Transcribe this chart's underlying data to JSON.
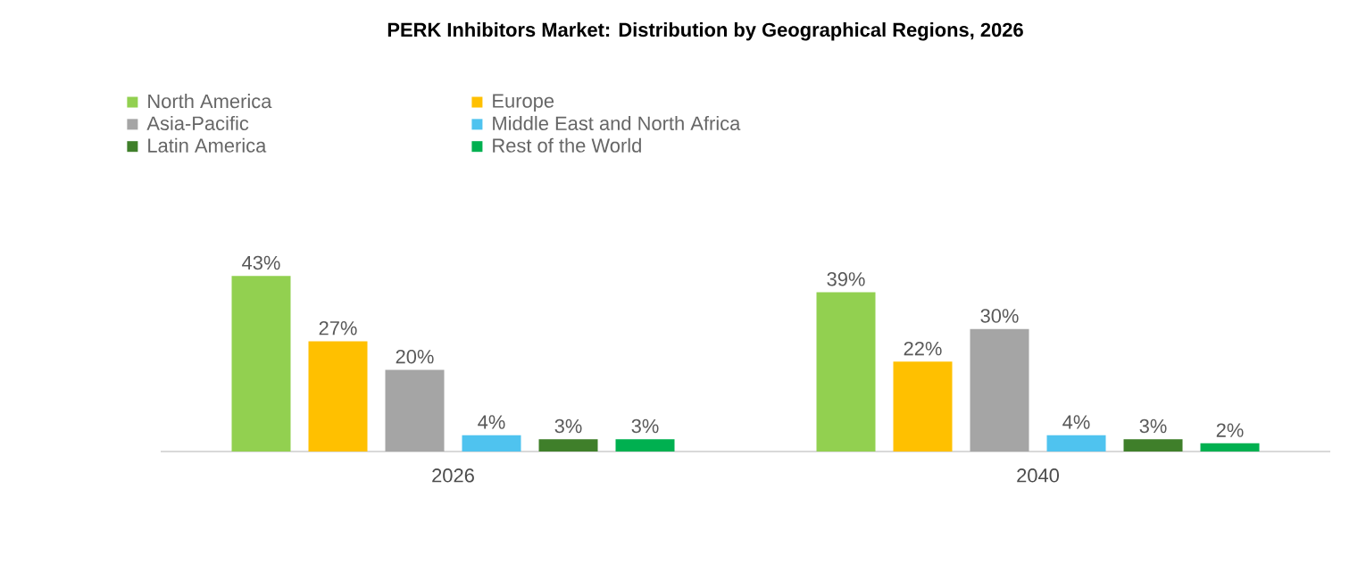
{
  "chart_data": {
    "type": "bar",
    "title": "PERK Inhibitors Market: Distribution by Geographical Regions, 2026",
    "categories": [
      "2026",
      "2040"
    ],
    "series": [
      {
        "name": "North America",
        "color": "#92d050",
        "values": [
          43,
          39
        ],
        "value_labels": [
          "43%",
          "39%"
        ]
      },
      {
        "name": "Europe",
        "color": "#ffc000",
        "values": [
          27,
          22
        ],
        "value_labels": [
          "27%",
          "22%"
        ]
      },
      {
        "name": "Asia-Pacific",
        "color": "#a5a5a5",
        "values": [
          20,
          30
        ],
        "value_labels": [
          "20%",
          "30%"
        ]
      },
      {
        "name": "Middle East and North Africa",
        "color": "#4fc3ef",
        "values": [
          4,
          4
        ],
        "value_labels": [
          "4%",
          "4%"
        ]
      },
      {
        "name": "Latin America",
        "color": "#3f7f2a",
        "values": [
          3,
          3
        ],
        "value_labels": [
          "3%",
          "3%"
        ]
      },
      {
        "name": "Rest of the World",
        "color": "#00b050",
        "values": [
          3,
          2
        ],
        "value_labels": [
          "3%",
          "2%"
        ]
      }
    ],
    "legend": "top"
  }
}
